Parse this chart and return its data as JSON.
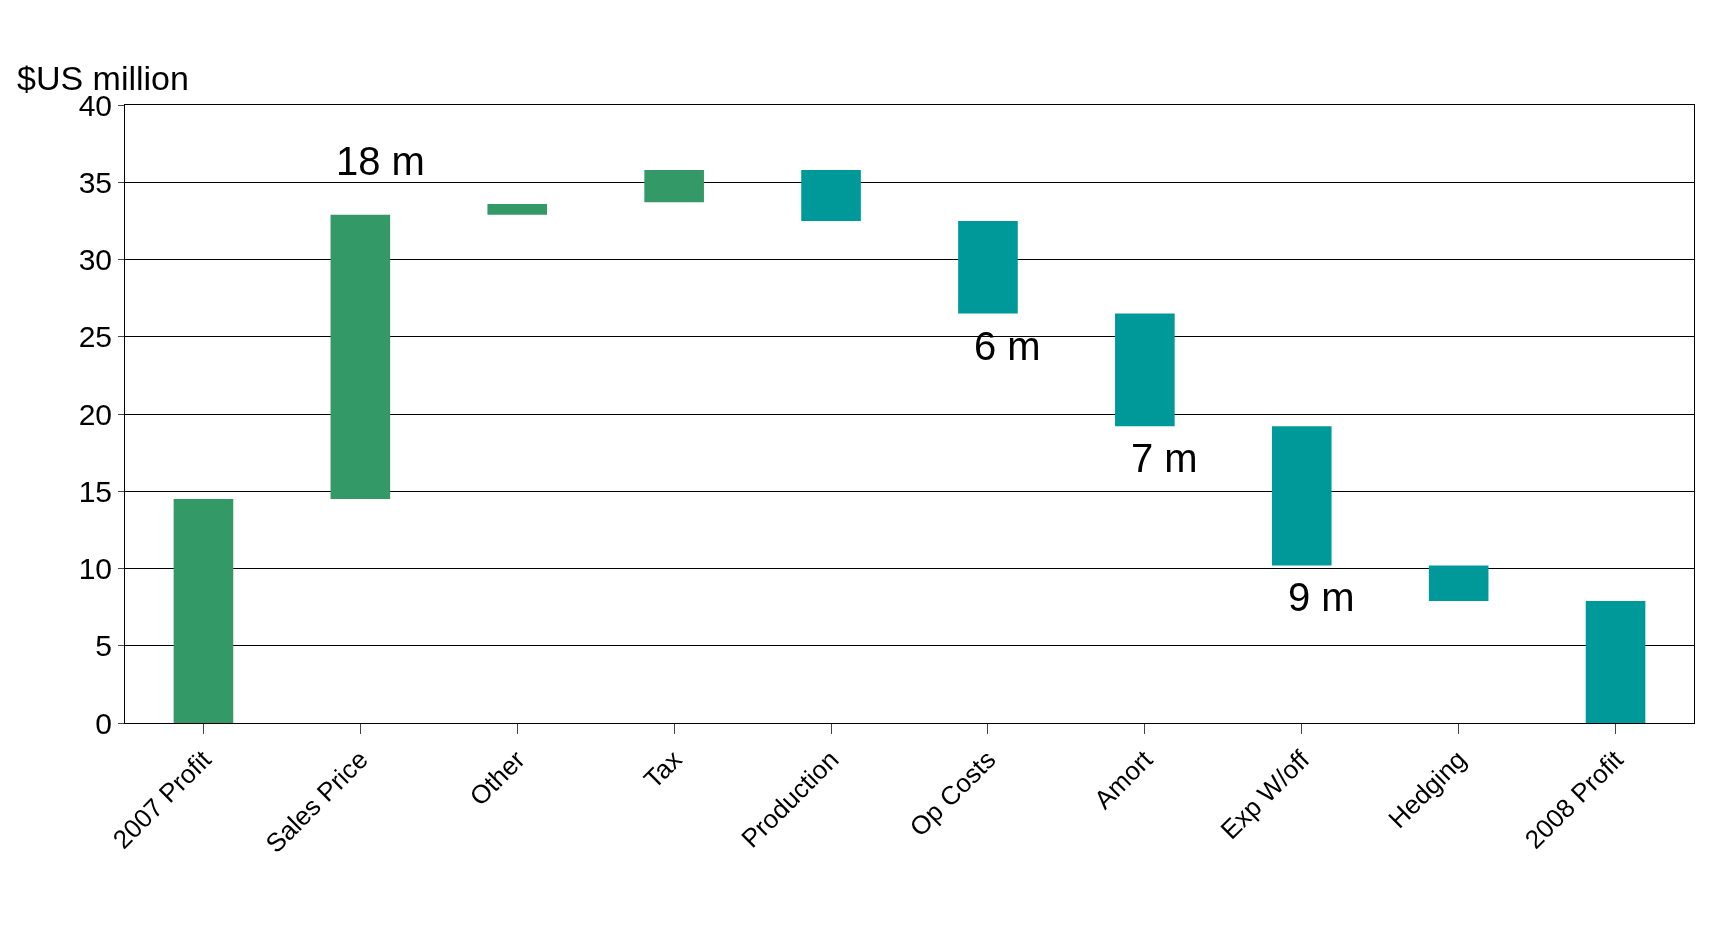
{
  "chart_data": {
    "type": "bar",
    "ylabel": "$US million",
    "categories": [
      "2007 Profit",
      "Sales Price",
      "Other",
      "Tax",
      "Production",
      "Op Costs",
      "Amort",
      "Exp W/off",
      "Hedging",
      "2008 Profit"
    ],
    "values": [
      14.5,
      18.4,
      0.7,
      2.1,
      3.3,
      6.0,
      7.3,
      9.0,
      2.3,
      7.9
    ],
    "base": [
      0,
      14.5,
      32.9,
      33.7,
      32.5,
      26.5,
      19.2,
      10.2,
      7.9,
      0
    ],
    "colors": [
      "#339966",
      "#339966",
      "#339966",
      "#339966",
      "#009999",
      "#009999",
      "#009999",
      "#009999",
      "#009999",
      "#009999"
    ],
    "ylim": [
      0,
      40
    ],
    "yticks": [
      0,
      5,
      10,
      15,
      20,
      25,
      30,
      35,
      40
    ],
    "grid": "y",
    "annotations": [
      {
        "text": "18 m",
        "x": "Sales Price",
        "y": 32.9
      },
      {
        "text": "6 m",
        "x": "Op Costs",
        "y": 26.5
      },
      {
        "text": "7 m",
        "x": "Amort",
        "y": 19.2
      },
      {
        "text": "9 m",
        "x": "Exp W/off",
        "y": 10.2
      }
    ]
  }
}
